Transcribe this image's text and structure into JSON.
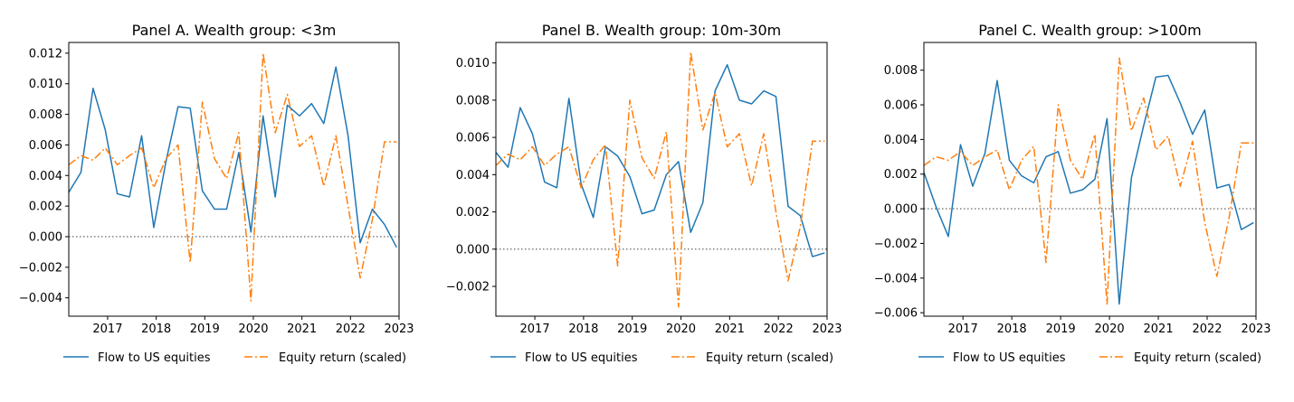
{
  "chart_data": [
    {
      "type": "line",
      "title": "Panel A. Wealth group: <3m",
      "x_ticks": [
        "2017",
        "2018",
        "2019",
        "2020",
        "2021",
        "2022",
        "2023"
      ],
      "y_ticks": [
        "−0.004",
        "−0.002",
        "0.000",
        "0.002",
        "0.004",
        "0.006",
        "0.008",
        "0.010",
        "0.012"
      ],
      "ylim": [
        -0.0052,
        0.0127
      ],
      "xlim": [
        2016.2,
        2023.0
      ],
      "zero_line": true,
      "x": [
        2016.2,
        2016.45,
        2016.7,
        2016.95,
        2017.2,
        2017.45,
        2017.7,
        2017.95,
        2018.2,
        2018.45,
        2018.7,
        2018.95,
        2019.2,
        2019.45,
        2019.7,
        2019.95,
        2020.2,
        2020.45,
        2020.7,
        2020.95,
        2021.2,
        2021.45,
        2021.7,
        2021.95,
        2022.2,
        2022.45,
        2022.7,
        2022.95
      ],
      "series": [
        {
          "name": "Flow to US equities",
          "style": "solid",
          "values": [
            0.0029,
            0.0042,
            0.0097,
            0.007,
            0.0028,
            0.0026,
            0.0066,
            0.0006,
            0.0049,
            0.0085,
            0.0084,
            0.003,
            0.0018,
            0.0018,
            0.0055,
            0.0003,
            0.0079,
            0.0026,
            0.0086,
            0.0079,
            0.0087,
            0.0074,
            0.0111,
            0.0066,
            -0.0004,
            0.0018,
            0.0008,
            -0.0007
          ]
        },
        {
          "name": "Equity return (scaled)",
          "style": "dashdot",
          "values": [
            0.0047,
            0.0053,
            0.005,
            0.0058,
            0.0047,
            0.0053,
            0.0058,
            0.0032,
            0.0051,
            0.006,
            -0.0017,
            0.0088,
            0.0051,
            0.0038,
            0.0068,
            -0.0042,
            0.012,
            0.0068,
            0.0093,
            0.0059,
            0.0066,
            0.0033,
            0.0066,
            0.002,
            -0.0027,
            0.0011,
            0.0062,
            0.0062
          ]
        }
      ]
    },
    {
      "type": "line",
      "title": "Panel B. Wealth group: 10m-30m",
      "x_ticks": [
        "2017",
        "2018",
        "2019",
        "2020",
        "2021",
        "2022",
        "2023"
      ],
      "y_ticks": [
        "−0.002",
        "0.000",
        "0.002",
        "0.004",
        "0.006",
        "0.008",
        "0.010"
      ],
      "ylim": [
        -0.0036,
        0.0111
      ],
      "xlim": [
        2016.2,
        2023.0
      ],
      "zero_line": true,
      "x": [
        2016.2,
        2016.45,
        2016.7,
        2016.95,
        2017.2,
        2017.45,
        2017.7,
        2017.95,
        2018.2,
        2018.45,
        2018.7,
        2018.95,
        2019.2,
        2019.45,
        2019.7,
        2019.95,
        2020.2,
        2020.45,
        2020.7,
        2020.95,
        2021.2,
        2021.45,
        2021.7,
        2021.95,
        2022.2,
        2022.45,
        2022.7,
        2022.95
      ],
      "series": [
        {
          "name": "Flow to US equities",
          "style": "solid",
          "values": [
            0.0052,
            0.0044,
            0.0076,
            0.0062,
            0.0036,
            0.0033,
            0.0081,
            0.0035,
            0.0017,
            0.0055,
            0.005,
            0.0039,
            0.0019,
            0.0021,
            0.004,
            0.0047,
            0.0009,
            0.0025,
            0.0085,
            0.0099,
            0.008,
            0.0078,
            0.0085,
            0.0082,
            0.0023,
            0.0018,
            -0.0004,
            -0.0002
          ]
        },
        {
          "name": "Equity return (scaled)",
          "style": "dashdot",
          "values": [
            0.0045,
            0.0051,
            0.0048,
            0.0055,
            0.0045,
            0.0051,
            0.0055,
            0.0033,
            0.0048,
            0.0056,
            -0.0009,
            0.008,
            0.0049,
            0.0038,
            0.0063,
            -0.0031,
            0.0106,
            0.0064,
            0.0084,
            0.0055,
            0.0062,
            0.0034,
            0.0062,
            0.002,
            -0.0017,
            0.0012,
            0.0058,
            0.0058
          ]
        }
      ]
    },
    {
      "type": "line",
      "title": "Panel C. Wealth group: >100m",
      "x_ticks": [
        "2017",
        "2018",
        "2019",
        "2020",
        "2021",
        "2022",
        "2023"
      ],
      "y_ticks": [
        "−0.006",
        "−0.004",
        "−0.002",
        "0.000",
        "0.002",
        "0.004",
        "0.006",
        "0.008"
      ],
      "ylim": [
        -0.0062,
        0.0096
      ],
      "xlim": [
        2016.2,
        2023.0
      ],
      "zero_line": true,
      "x": [
        2016.2,
        2016.45,
        2016.7,
        2016.95,
        2017.2,
        2017.45,
        2017.7,
        2017.95,
        2018.2,
        2018.45,
        2018.7,
        2018.95,
        2019.2,
        2019.45,
        2019.7,
        2019.95,
        2020.2,
        2020.45,
        2020.7,
        2020.95,
        2021.2,
        2021.45,
        2021.7,
        2021.95,
        2022.2,
        2022.45,
        2022.7,
        2022.95
      ],
      "series": [
        {
          "name": "Flow to US equities",
          "style": "solid",
          "values": [
            0.0021,
            0.0001,
            -0.0016,
            0.0037,
            0.0013,
            0.0032,
            0.0074,
            0.0028,
            0.0019,
            0.0015,
            0.003,
            0.0033,
            0.0009,
            0.0011,
            0.0017,
            0.0052,
            -0.0055,
            0.0018,
            0.0048,
            0.0076,
            0.0077,
            0.0061,
            0.0043,
            0.0057,
            0.0012,
            0.0014,
            -0.0012,
            -0.0008
          ]
        },
        {
          "name": "Equity return (scaled)",
          "style": "dashdot",
          "values": [
            0.0025,
            0.003,
            0.0028,
            0.0033,
            0.0025,
            0.003,
            0.0034,
            0.0011,
            0.0028,
            0.0036,
            -0.0031,
            0.006,
            0.0028,
            0.0017,
            0.0043,
            -0.0055,
            0.0087,
            0.0045,
            0.0064,
            0.0034,
            0.0042,
            0.0013,
            0.0039,
            -0.0008,
            -0.0039,
            -0.0005,
            0.0038,
            0.0038
          ]
        }
      ]
    }
  ],
  "colors": {
    "flow": "#1f77b4",
    "equity": "#ff7f0e",
    "zero_line": "#555555",
    "axes": "#000000"
  },
  "legend": {
    "flow_label": "Flow to US equities",
    "equity_label": "Equity return (scaled)"
  }
}
